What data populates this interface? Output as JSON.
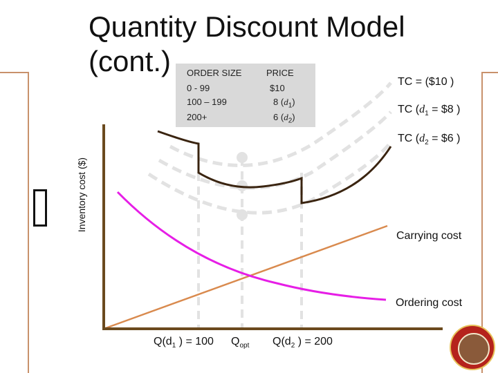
{
  "slide": {
    "title_line1": "Quantity Discount Model",
    "title_line2": "(cont.)",
    "y_axis_label": "Inventory cost ($)"
  },
  "table": {
    "col1_header": "ORDER SIZE",
    "col2_header": "PRICE",
    "rows": [
      {
        "size": "0 - 99",
        "price": "$10"
      },
      {
        "size": "100 – 199",
        "price_num": "8",
        "price_tag": "d",
        "price_sub": "1"
      },
      {
        "size": "200+",
        "price_num": "6",
        "price_tag": "d",
        "price_sub": "2"
      }
    ]
  },
  "curves": {
    "tc_10": {
      "text": "TC = ($10 )"
    },
    "tc_d1": {
      "pre": "TC (",
      "var": "d",
      "sub": "1",
      "post": " = $8 )"
    },
    "tc_d2": {
      "pre": "TC (",
      "var": "d",
      "sub": "2",
      "post": " = $6 )"
    },
    "carrying": "Carrying cost",
    "ordering": "Ordering cost"
  },
  "x_labels": {
    "q_d1": {
      "pre": "Q(",
      "var": "d",
      "sub": "1",
      "post": " ) = 100"
    },
    "q_opt": {
      "pre": "Q",
      "sub": "opt"
    },
    "q_d2": {
      "pre": "Q(",
      "var": "d",
      "sub": "2",
      "post": " ) = 200"
    }
  },
  "colors": {
    "axis": "#6b4a1e",
    "tc_curve": "#3a2410",
    "dashed_curve": "#e2e2e2",
    "carrying_line": "#d98a4e",
    "ordering_curve": "#e61ee6",
    "accent_rule": "#c8916b",
    "table_bg": "#d9d9d9"
  },
  "icons": {
    "seal": "university-seal-icon"
  }
}
